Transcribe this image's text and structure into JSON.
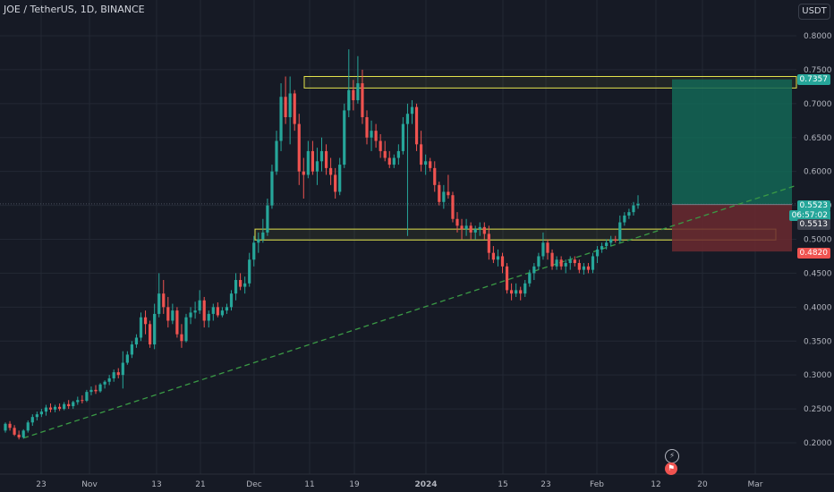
{
  "header": {
    "title": "JOE / TetherUS, 1D, BINANCE",
    "currency_button": "USDT"
  },
  "colors": {
    "background": "#161a25",
    "up": "#26a69a",
    "down": "#ef5350",
    "grid": "#232834",
    "axis_text": "#b2b5be",
    "zone": "#e2e24c",
    "target_fill": "#136756",
    "stop_fill": "#6b2a30",
    "trendline": "#3a9a45"
  },
  "chart_data": {
    "type": "candlestick",
    "symbol": "JOE / TetherUS",
    "interval": "1D",
    "exchange": "BINANCE",
    "y_axis": {
      "range": [
        0.17,
        0.82
      ],
      "ticks": [
        "0.8000",
        "0.7500",
        "0.7000",
        "0.6500",
        "0.6000",
        "0.5500",
        "0.5000",
        "0.4500",
        "0.4000",
        "0.3500",
        "0.3000",
        "0.2500",
        "0.2000"
      ]
    },
    "x_axis": {
      "ticks": [
        "23",
        "Nov",
        "13",
        "21",
        "Dec",
        "11",
        "19",
        "2024",
        "15",
        "23",
        "Feb",
        "12",
        "20",
        "Mar"
      ]
    },
    "current_price": "0.5523",
    "countdown": "06:57:02",
    "price_labels": {
      "target": "0.7357",
      "entry": "0.5513",
      "stop": "0.4820"
    },
    "zones": [
      {
        "name": "resistance-zone",
        "top": 0.74,
        "bottom": 0.723
      },
      {
        "name": "support-zone",
        "top": 0.515,
        "bottom": 0.499
      }
    ],
    "trendline": {
      "from": {
        "index": 4,
        "price": 0.207
      },
      "to": {
        "index": 145,
        "price": 0.514
      }
    },
    "position": {
      "type": "long",
      "entry": 0.5513,
      "target": 0.7357,
      "stop": 0.482
    },
    "candles": [
      [
        0.218,
        0.23,
        0.215,
        0.228
      ],
      [
        0.228,
        0.232,
        0.218,
        0.222
      ],
      [
        0.222,
        0.226,
        0.21,
        0.212
      ],
      [
        0.212,
        0.218,
        0.205,
        0.208
      ],
      [
        0.208,
        0.22,
        0.206,
        0.218
      ],
      [
        0.218,
        0.233,
        0.215,
        0.23
      ],
      [
        0.23,
        0.242,
        0.225,
        0.238
      ],
      [
        0.238,
        0.246,
        0.233,
        0.242
      ],
      [
        0.242,
        0.25,
        0.238,
        0.246
      ],
      [
        0.246,
        0.256,
        0.24,
        0.252
      ],
      [
        0.252,
        0.258,
        0.245,
        0.249
      ],
      [
        0.249,
        0.256,
        0.245,
        0.253
      ],
      [
        0.253,
        0.258,
        0.247,
        0.25
      ],
      [
        0.25,
        0.26,
        0.248,
        0.257
      ],
      [
        0.257,
        0.263,
        0.25,
        0.254
      ],
      [
        0.254,
        0.262,
        0.25,
        0.26
      ],
      [
        0.26,
        0.268,
        0.256,
        0.263
      ],
      [
        0.263,
        0.27,
        0.258,
        0.262
      ],
      [
        0.262,
        0.278,
        0.26,
        0.275
      ],
      [
        0.275,
        0.283,
        0.27,
        0.278
      ],
      [
        0.278,
        0.285,
        0.272,
        0.276
      ],
      [
        0.276,
        0.288,
        0.274,
        0.286
      ],
      [
        0.286,
        0.292,
        0.28,
        0.29
      ],
      [
        0.29,
        0.3,
        0.285,
        0.295
      ],
      [
        0.295,
        0.308,
        0.29,
        0.304
      ],
      [
        0.304,
        0.31,
        0.295,
        0.3
      ],
      [
        0.3,
        0.335,
        0.28,
        0.318
      ],
      [
        0.318,
        0.335,
        0.315,
        0.33
      ],
      [
        0.33,
        0.35,
        0.325,
        0.345
      ],
      [
        0.345,
        0.36,
        0.34,
        0.355
      ],
      [
        0.355,
        0.392,
        0.35,
        0.385
      ],
      [
        0.385,
        0.395,
        0.36,
        0.375
      ],
      [
        0.375,
        0.38,
        0.34,
        0.345
      ],
      [
        0.345,
        0.405,
        0.338,
        0.39
      ],
      [
        0.39,
        0.45,
        0.385,
        0.42
      ],
      [
        0.42,
        0.44,
        0.39,
        0.4
      ],
      [
        0.4,
        0.415,
        0.37,
        0.38
      ],
      [
        0.38,
        0.405,
        0.375,
        0.395
      ],
      [
        0.395,
        0.4,
        0.355,
        0.36
      ],
      [
        0.36,
        0.375,
        0.34,
        0.35
      ],
      [
        0.35,
        0.39,
        0.348,
        0.385
      ],
      [
        0.385,
        0.4,
        0.375,
        0.392
      ],
      [
        0.392,
        0.408,
        0.383,
        0.395
      ],
      [
        0.395,
        0.425,
        0.39,
        0.41
      ],
      [
        0.41,
        0.415,
        0.37,
        0.38
      ],
      [
        0.38,
        0.395,
        0.37,
        0.39
      ],
      [
        0.39,
        0.405,
        0.38,
        0.4
      ],
      [
        0.4,
        0.407,
        0.385,
        0.388
      ],
      [
        0.388,
        0.4,
        0.385,
        0.395
      ],
      [
        0.395,
        0.405,
        0.39,
        0.4
      ],
      [
        0.4,
        0.425,
        0.395,
        0.42
      ],
      [
        0.42,
        0.45,
        0.41,
        0.44
      ],
      [
        0.44,
        0.45,
        0.425,
        0.43
      ],
      [
        0.43,
        0.445,
        0.42,
        0.435
      ],
      [
        0.435,
        0.48,
        0.43,
        0.47
      ],
      [
        0.47,
        0.505,
        0.46,
        0.495
      ],
      [
        0.495,
        0.51,
        0.48,
        0.5
      ],
      [
        0.5,
        0.53,
        0.495,
        0.51
      ],
      [
        0.51,
        0.56,
        0.505,
        0.55
      ],
      [
        0.55,
        0.61,
        0.545,
        0.6
      ],
      [
        0.6,
        0.66,
        0.595,
        0.645
      ],
      [
        0.645,
        0.73,
        0.63,
        0.71
      ],
      [
        0.71,
        0.74,
        0.67,
        0.68
      ],
      [
        0.68,
        0.74,
        0.64,
        0.715
      ],
      [
        0.715,
        0.72,
        0.66,
        0.67
      ],
      [
        0.67,
        0.685,
        0.58,
        0.6
      ],
      [
        0.6,
        0.62,
        0.56,
        0.595
      ],
      [
        0.595,
        0.645,
        0.59,
        0.63
      ],
      [
        0.63,
        0.645,
        0.595,
        0.6
      ],
      [
        0.6,
        0.635,
        0.58,
        0.615
      ],
      [
        0.615,
        0.65,
        0.6,
        0.63
      ],
      [
        0.63,
        0.64,
        0.595,
        0.605
      ],
      [
        0.605,
        0.62,
        0.58,
        0.595
      ],
      [
        0.595,
        0.605,
        0.56,
        0.57
      ],
      [
        0.57,
        0.62,
        0.565,
        0.61
      ],
      [
        0.61,
        0.7,
        0.605,
        0.69
      ],
      [
        0.69,
        0.78,
        0.68,
        0.72
      ],
      [
        0.72,
        0.735,
        0.69,
        0.705
      ],
      [
        0.705,
        0.77,
        0.7,
        0.73
      ],
      [
        0.73,
        0.75,
        0.67,
        0.68
      ],
      [
        0.68,
        0.69,
        0.64,
        0.65
      ],
      [
        0.65,
        0.675,
        0.63,
        0.66
      ],
      [
        0.66,
        0.67,
        0.635,
        0.645
      ],
      [
        0.645,
        0.655,
        0.62,
        0.63
      ],
      [
        0.63,
        0.645,
        0.615,
        0.62
      ],
      [
        0.62,
        0.63,
        0.605,
        0.61
      ],
      [
        0.61,
        0.625,
        0.605,
        0.62
      ],
      [
        0.62,
        0.64,
        0.61,
        0.63
      ],
      [
        0.63,
        0.68,
        0.625,
        0.67
      ],
      [
        0.67,
        0.7,
        0.505,
        0.685
      ],
      [
        0.685,
        0.705,
        0.67,
        0.695
      ],
      [
        0.695,
        0.7,
        0.63,
        0.64
      ],
      [
        0.64,
        0.66,
        0.6,
        0.61
      ],
      [
        0.61,
        0.625,
        0.595,
        0.615
      ],
      [
        0.615,
        0.62,
        0.6,
        0.605
      ],
      [
        0.605,
        0.615,
        0.57,
        0.58
      ],
      [
        0.58,
        0.585,
        0.55,
        0.555
      ],
      [
        0.555,
        0.58,
        0.545,
        0.57
      ],
      [
        0.57,
        0.595,
        0.56,
        0.565
      ],
      [
        0.565,
        0.57,
        0.525,
        0.53
      ],
      [
        0.53,
        0.54,
        0.51,
        0.52
      ],
      [
        0.52,
        0.53,
        0.5,
        0.515
      ],
      [
        0.515,
        0.53,
        0.505,
        0.52
      ],
      [
        0.52,
        0.525,
        0.5,
        0.51
      ],
      [
        0.51,
        0.52,
        0.5,
        0.515
      ],
      [
        0.515,
        0.525,
        0.505,
        0.518
      ],
      [
        0.518,
        0.525,
        0.5,
        0.508
      ],
      [
        0.508,
        0.52,
        0.47,
        0.48
      ],
      [
        0.48,
        0.49,
        0.465,
        0.47
      ],
      [
        0.47,
        0.485,
        0.46,
        0.475
      ],
      [
        0.475,
        0.48,
        0.45,
        0.46
      ],
      [
        0.46,
        0.465,
        0.42,
        0.425
      ],
      [
        0.425,
        0.435,
        0.41,
        0.42
      ],
      [
        0.42,
        0.435,
        0.415,
        0.425
      ],
      [
        0.425,
        0.43,
        0.41,
        0.42
      ],
      [
        0.42,
        0.44,
        0.415,
        0.435
      ],
      [
        0.435,
        0.455,
        0.43,
        0.45
      ],
      [
        0.45,
        0.465,
        0.44,
        0.46
      ],
      [
        0.46,
        0.48,
        0.455,
        0.475
      ],
      [
        0.475,
        0.51,
        0.47,
        0.495
      ],
      [
        0.495,
        0.5,
        0.47,
        0.48
      ],
      [
        0.48,
        0.485,
        0.455,
        0.46
      ],
      [
        0.46,
        0.475,
        0.455,
        0.47
      ],
      [
        0.47,
        0.475,
        0.455,
        0.46
      ],
      [
        0.46,
        0.47,
        0.45,
        0.465
      ],
      [
        0.465,
        0.475,
        0.455,
        0.47
      ],
      [
        0.47,
        0.475,
        0.46,
        0.465
      ],
      [
        0.465,
        0.47,
        0.45,
        0.455
      ],
      [
        0.455,
        0.465,
        0.448,
        0.46
      ],
      [
        0.46,
        0.465,
        0.45,
        0.455
      ],
      [
        0.455,
        0.48,
        0.45,
        0.475
      ],
      [
        0.475,
        0.49,
        0.465,
        0.485
      ],
      [
        0.485,
        0.495,
        0.48,
        0.49
      ],
      [
        0.49,
        0.5,
        0.485,
        0.495
      ],
      [
        0.495,
        0.505,
        0.49,
        0.5
      ],
      [
        0.5,
        0.505,
        0.495,
        0.498
      ],
      [
        0.498,
        0.535,
        0.495,
        0.525
      ],
      [
        0.525,
        0.54,
        0.52,
        0.535
      ],
      [
        0.535,
        0.545,
        0.53,
        0.54
      ],
      [
        0.54,
        0.555,
        0.535,
        0.55
      ],
      [
        0.55,
        0.565,
        0.545,
        0.5523
      ]
    ]
  }
}
